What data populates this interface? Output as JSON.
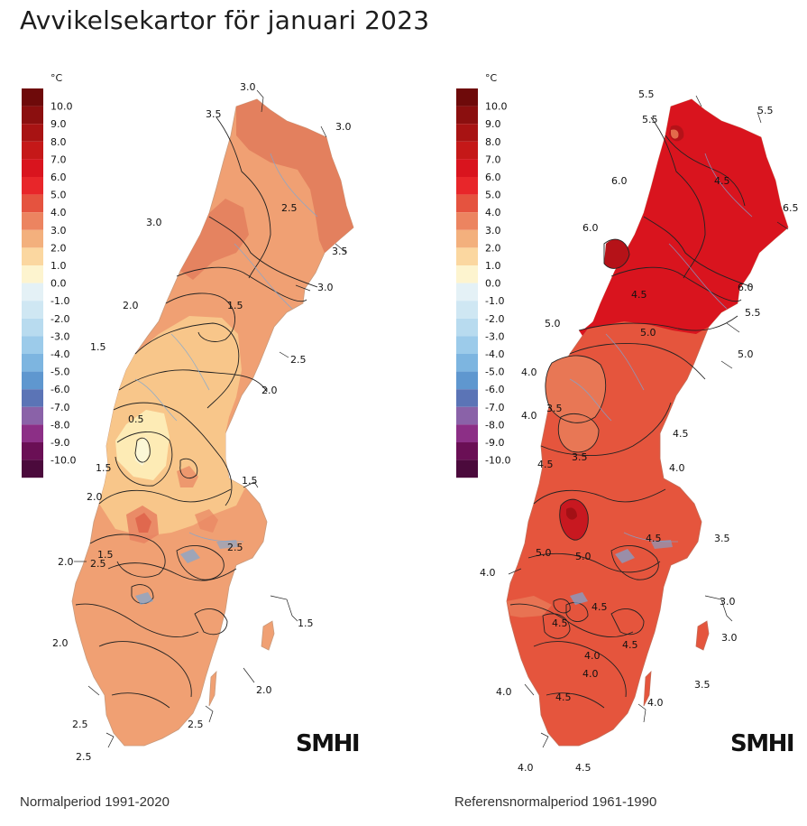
{
  "page": {
    "title": "Avvikelsekartor för januari 2023"
  },
  "legend": {
    "unit": "°C",
    "entries": [
      {
        "label": "10.0",
        "color": "#6e0a0a"
      },
      {
        "label": "9.0",
        "color": "#8b0f0f"
      },
      {
        "label": "8.0",
        "color": "#a81313"
      },
      {
        "label": "7.0",
        "color": "#c51818"
      },
      {
        "label": "6.0",
        "color": "#d9141e"
      },
      {
        "label": "5.0",
        "color": "#e8262a"
      },
      {
        "label": "4.0",
        "color": "#e5533f"
      },
      {
        "label": "3.0",
        "color": "#ec8460"
      },
      {
        "label": "2.0",
        "color": "#f3b07d"
      },
      {
        "label": "1.0",
        "color": "#fbd7a0"
      },
      {
        "label": "0.0",
        "color": "#fdf4cf"
      },
      {
        "label": "-1.0",
        "color": "#e4f1f6"
      },
      {
        "label": "-2.0",
        "color": "#cfe7f3"
      },
      {
        "label": "-3.0",
        "color": "#b8dbef"
      },
      {
        "label": "-4.0",
        "color": "#9ccbea"
      },
      {
        "label": "-5.0",
        "color": "#7db5e0"
      },
      {
        "label": "-6.0",
        "color": "#5f97cf"
      },
      {
        "label": "-7.0",
        "color": "#5b74b6"
      },
      {
        "label": "-8.0",
        "color": "#8a62a8"
      },
      {
        "label": "-9.0",
        "color": "#8c2f86"
      },
      {
        "label": "-10.0",
        "color": "#6a0f55"
      },
      {
        "label": "",
        "color": "#4b0a3c"
      }
    ]
  },
  "maps": [
    {
      "caption": "Normalperiod 1991-2020",
      "logo": "SMHI",
      "base_color": "#f0a073",
      "labels": [
        "3.0",
        "3.5",
        "3.0",
        "2.5",
        "3.0",
        "3.5",
        "3.0",
        "2.0",
        "1.5",
        "1.5",
        "2.5",
        "2.0",
        "1.5",
        "0.5",
        "1.5",
        "2.0",
        "1.5",
        "2.5",
        "2.0",
        "2.5",
        "1.5",
        "2.0",
        "2.0",
        "2.5",
        "2.5",
        "2.5"
      ]
    },
    {
      "caption": "Referensnormalperiod 1961-1990",
      "logo": "SMHI",
      "base_color": "#e5553d",
      "labels": [
        "5.5",
        "5.5",
        "5.5",
        "4.5",
        "6.0",
        "6.5",
        "6.0",
        "6.0",
        "4.5",
        "5.5",
        "5.0",
        "5.0",
        "5.0",
        "4.0",
        "3.5",
        "4.0",
        "3.5",
        "4.5",
        "4.5",
        "4.0",
        "5.0",
        "5.0",
        "4.5",
        "3.5",
        "4.0",
        "4.0",
        "4.5",
        "3.0",
        "4.5",
        "3.0",
        "4.0",
        "4.5",
        "4.0",
        "3.5",
        "4.5",
        "4.0",
        "4.0",
        "4.5"
      ]
    }
  ]
}
